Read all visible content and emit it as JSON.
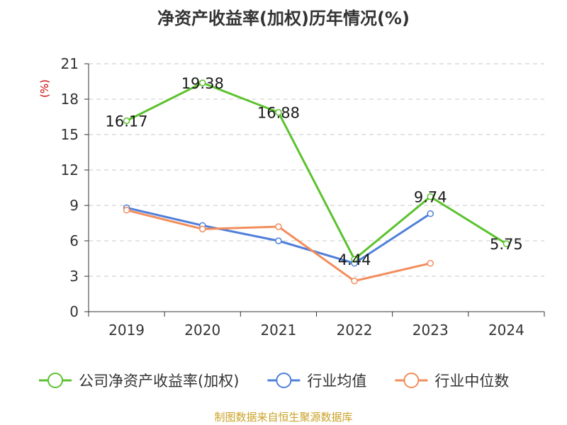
{
  "chart_data": {
    "type": "line",
    "title": "净资产收益率(加权)历年情况(%)",
    "ylabel": "(%)",
    "xlabel": "",
    "categories": [
      "2019",
      "2020",
      "2021",
      "2022",
      "2023",
      "2024"
    ],
    "ylim": [
      0,
      21
    ],
    "yticks": [
      0,
      3,
      6,
      9,
      12,
      15,
      18,
      21
    ],
    "grid": "horizontal-dashed",
    "legend_position": "bottom",
    "series": [
      {
        "name": "公司净资产收益率(加权)",
        "color": "#5cc22e",
        "values": [
          16.17,
          19.38,
          16.88,
          4.44,
          9.74,
          5.75
        ],
        "labels": [
          "16.17",
          "19.38",
          "16.88",
          "4.44",
          "9.74",
          "5.75"
        ]
      },
      {
        "name": "行业均值",
        "color": "#4f7fd9",
        "values": [
          8.8,
          7.3,
          6.0,
          4.1,
          8.3,
          null
        ]
      },
      {
        "name": "行业中位数",
        "color": "#f28d5c",
        "values": [
          8.6,
          7.0,
          7.2,
          2.6,
          4.1,
          null
        ]
      }
    ]
  },
  "source": "制图数据来自恒生聚源数据库"
}
